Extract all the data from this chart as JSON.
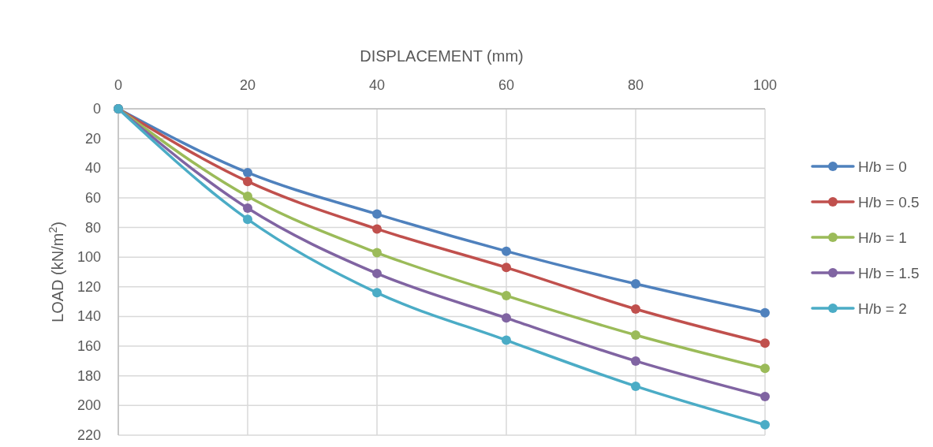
{
  "chart_data": {
    "type": "line",
    "xlabel": "DISPLACEMENT (mm)",
    "ylabel": "LOAD (kN/m$^{2}$)",
    "x": [
      0,
      20,
      40,
      60,
      80,
      100
    ],
    "xlim": [
      0,
      100
    ],
    "xticks": [
      0,
      20,
      40,
      60,
      80,
      100
    ],
    "ylim": [
      220,
      0
    ],
    "yticks": [
      0,
      20,
      40,
      60,
      80,
      100,
      120,
      140,
      160,
      180,
      200,
      220
    ],
    "grid": true,
    "legend": "right",
    "marker": "circle",
    "line_style": "solid",
    "series": [
      {
        "name": "H/b = 0",
        "color": "#4f81bd",
        "values": [
          0,
          43,
          71,
          96,
          118,
          137.5
        ]
      },
      {
        "name": "H/b = 0.5",
        "color": "#c0504d",
        "values": [
          0,
          49,
          81,
          107,
          135,
          158
        ]
      },
      {
        "name": "H/b = 1",
        "color": "#9bbb59",
        "values": [
          0,
          59,
          97,
          126,
          152.5,
          175
        ]
      },
      {
        "name": "H/b = 1.5",
        "color": "#8064a2",
        "values": [
          0,
          67,
          111,
          141,
          170,
          194
        ]
      },
      {
        "name": "H/b = 2",
        "color": "#4bacc6",
        "values": [
          0,
          74.5,
          124,
          156,
          187,
          213
        ]
      }
    ]
  }
}
